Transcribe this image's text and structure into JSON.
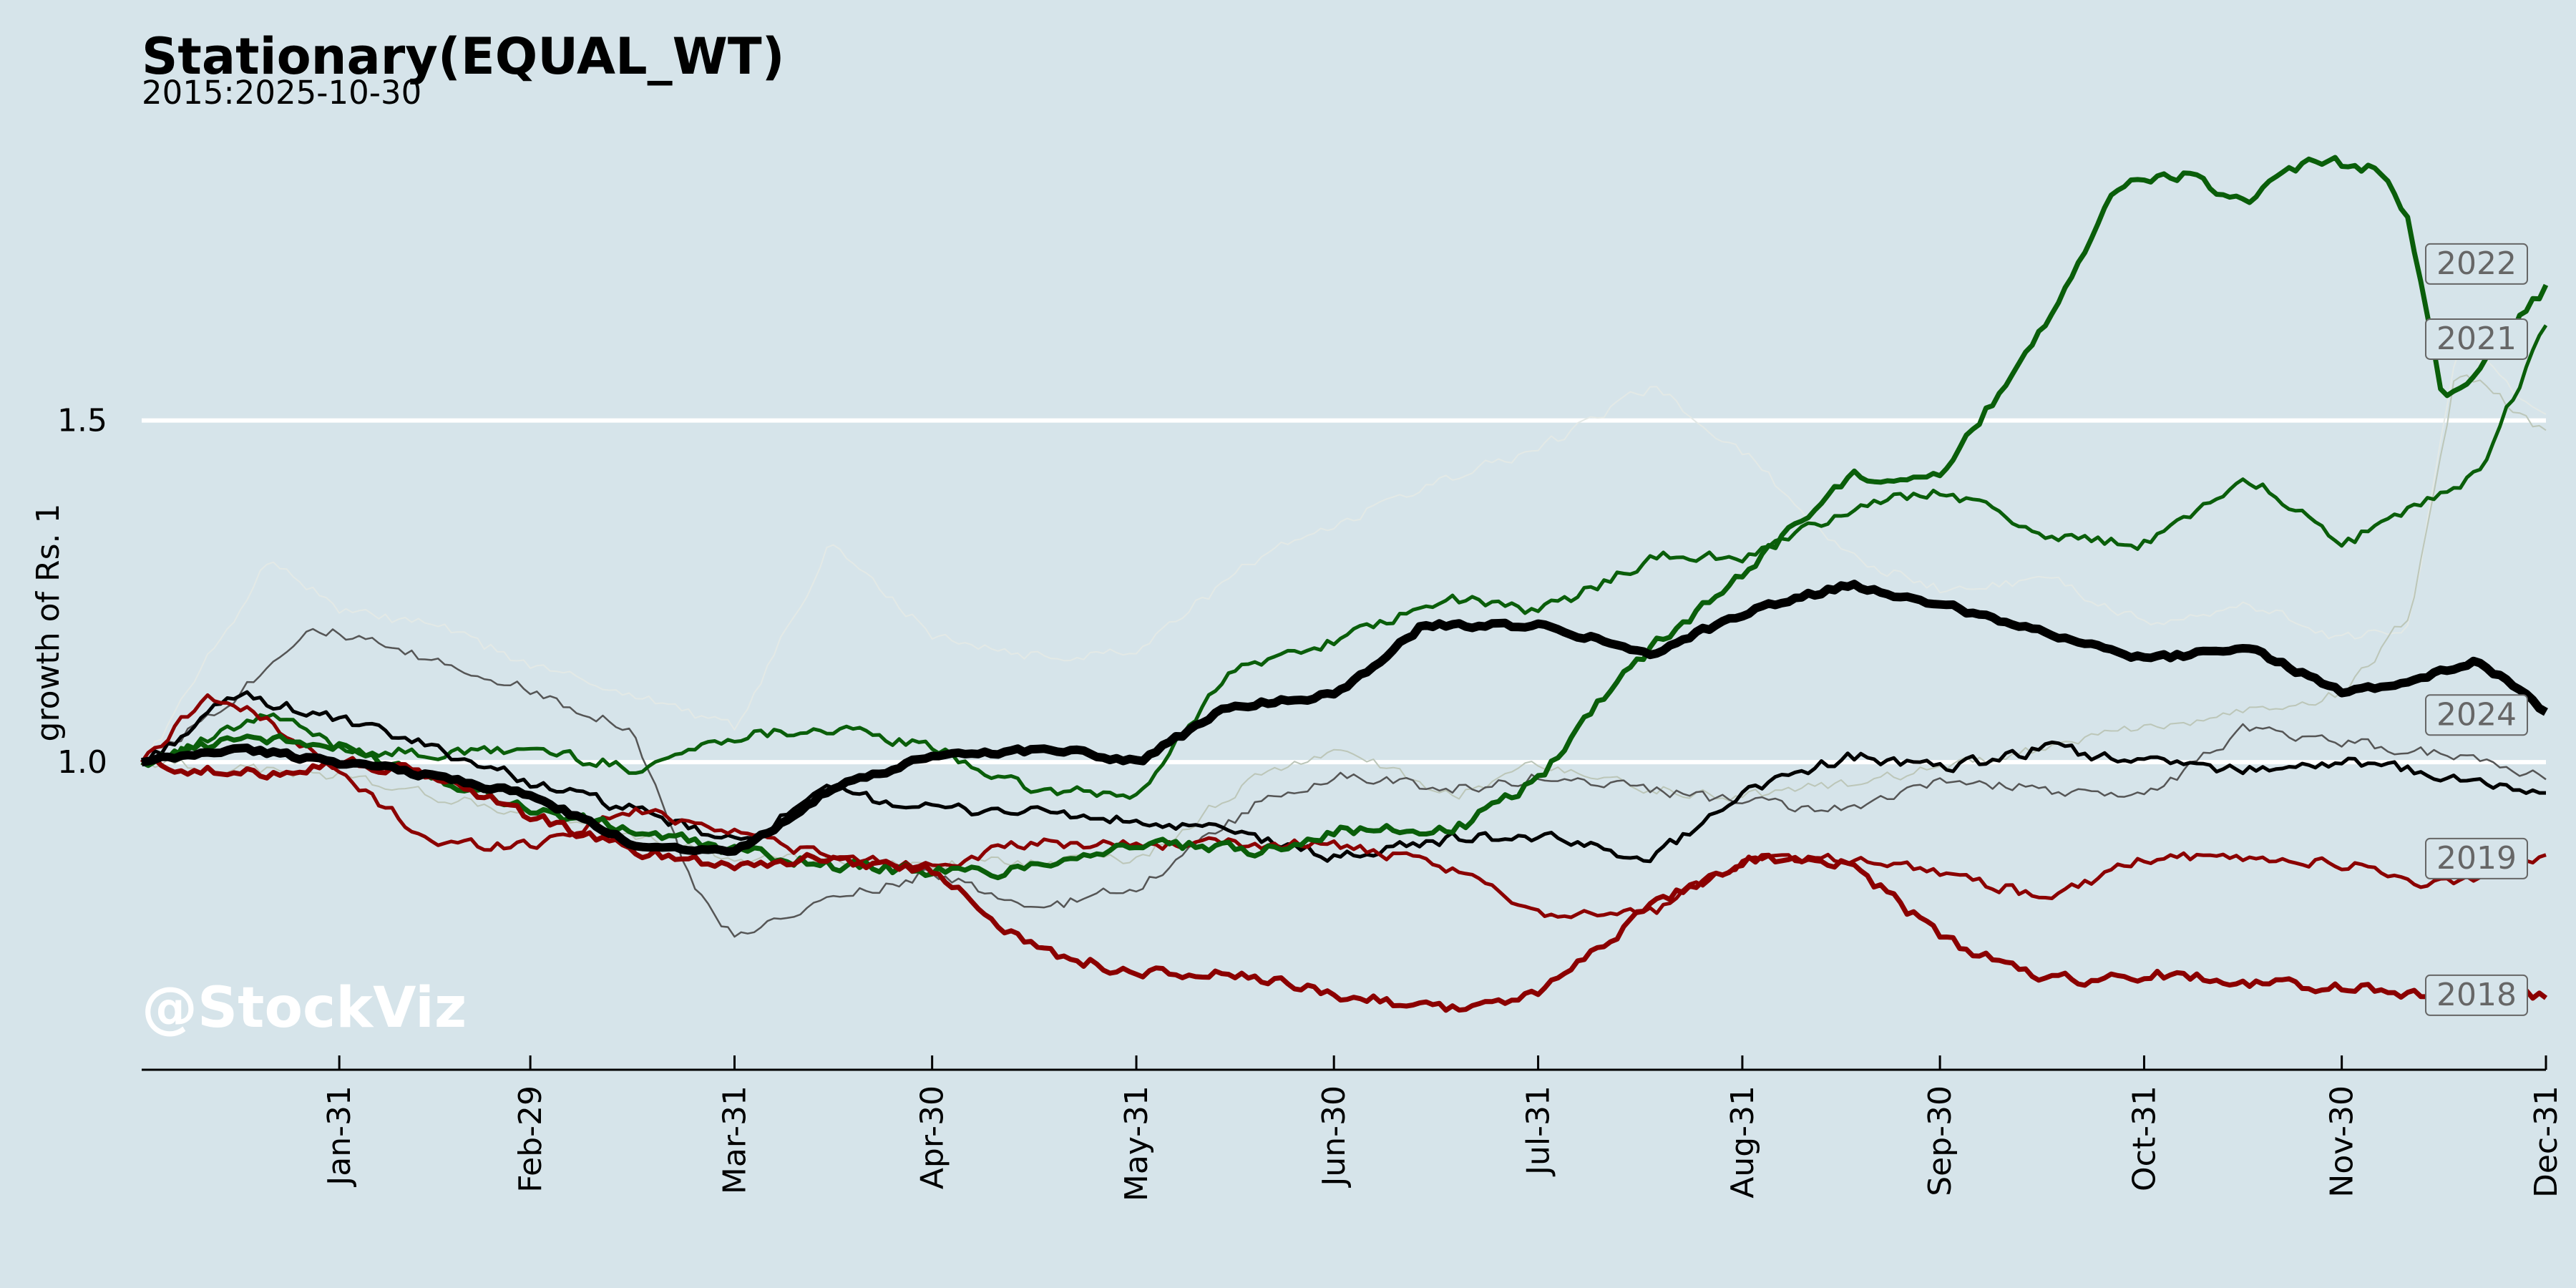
{
  "chart_data": {
    "type": "line",
    "title": "Stationary(EQUAL_WT)",
    "subtitle": "2015:2025-10-30",
    "ylabel": "growth of Rs. 1",
    "watermark": "@StockViz",
    "x_ticks": [
      "Jan-31",
      "Feb-29",
      "Mar-31",
      "Apr-30",
      "May-31",
      "Jun-30",
      "Jul-31",
      "Aug-31",
      "Sep-30",
      "Oct-31",
      "Nov-30",
      "Dec-31"
    ],
    "x_tick_days": [
      31,
      60,
      91,
      121,
      152,
      182,
      213,
      244,
      274,
      305,
      335,
      366
    ],
    "xlim": [
      1,
      366
    ],
    "y_ticks": [
      1.0,
      1.5
    ],
    "y_tick_labels": [
      "1.0",
      "1.5"
    ],
    "ylim": [
      0.55,
      2.0
    ],
    "grid": "horizontal",
    "series": [
      {
        "name": "2022",
        "color": "#0a5e0a",
        "style": "bold",
        "x": [
          1,
          15,
          31,
          45,
          60,
          75,
          91,
          105,
          121,
          131,
          140,
          152,
          170,
          182,
          200,
          213,
          225,
          244,
          260,
          274,
          290,
          300,
          310,
          320,
          330,
          340,
          345,
          350,
          357,
          366
        ],
        "y": [
          1.0,
          1.04,
          1.02,
          0.98,
          0.93,
          0.9,
          0.87,
          0.85,
          0.84,
          0.84,
          0.86,
          0.88,
          0.87,
          0.9,
          0.9,
          0.98,
          1.13,
          1.28,
          1.42,
          1.42,
          1.65,
          1.84,
          1.86,
          1.82,
          1.88,
          1.87,
          1.78,
          1.52,
          1.6,
          1.7
        ]
      },
      {
        "name": "2021",
        "color": "#0a5e0a",
        "style": "normal",
        "x": [
          1,
          10,
          20,
          31,
          45,
          60,
          75,
          91,
          105,
          121,
          135,
          152,
          165,
          182,
          200,
          213,
          230,
          244,
          260,
          274,
          290,
          305,
          320,
          335,
          345,
          355,
          366
        ],
        "y": [
          1.0,
          1.03,
          1.07,
          1.02,
          1.01,
          1.02,
          0.99,
          1.04,
          1.05,
          1.02,
          0.96,
          0.95,
          1.13,
          1.18,
          1.24,
          1.22,
          1.3,
          1.3,
          1.37,
          1.4,
          1.33,
          1.32,
          1.42,
          1.32,
          1.37,
          1.42,
          1.65
        ]
      },
      {
        "name": "2024",
        "color": "#000000",
        "style": "normal",
        "x": [
          1,
          15,
          31,
          45,
          60,
          75,
          91,
          105,
          121,
          135,
          152,
          165,
          182,
          200,
          213,
          230,
          244,
          260,
          274,
          290,
          305,
          320,
          335,
          350,
          366
        ],
        "y": [
          1.0,
          1.1,
          1.06,
          1.02,
          0.97,
          0.93,
          0.88,
          0.96,
          0.93,
          0.93,
          0.91,
          0.9,
          0.86,
          0.89,
          0.89,
          0.86,
          0.96,
          1.01,
          0.99,
          1.02,
          1.0,
          0.99,
          1.0,
          0.98,
          0.95
        ]
      },
      {
        "name": "2019",
        "color": "#8b0000",
        "style": "normal",
        "x": [
          1,
          10,
          20,
          31,
          45,
          60,
          75,
          91,
          105,
          121,
          135,
          152,
          165,
          182,
          200,
          213,
          230,
          244,
          260,
          274,
          290,
          305,
          320,
          335,
          350,
          366
        ],
        "y": [
          1.0,
          1.1,
          1.06,
          0.98,
          0.88,
          0.88,
          0.93,
          0.9,
          0.86,
          0.85,
          0.88,
          0.88,
          0.88,
          0.88,
          0.84,
          0.78,
          0.78,
          0.86,
          0.86,
          0.84,
          0.8,
          0.86,
          0.86,
          0.85,
          0.82,
          0.86
        ]
      },
      {
        "name": "2018",
        "color": "#8b0000",
        "style": "bold",
        "x": [
          1,
          15,
          31,
          45,
          60,
          75,
          91,
          105,
          121,
          128,
          135,
          152,
          165,
          182,
          200,
          213,
          220,
          230,
          244,
          260,
          274,
          290,
          305,
          320,
          335,
          350,
          366
        ],
        "y": [
          1.0,
          0.98,
          1.0,
          0.98,
          0.92,
          0.87,
          0.85,
          0.86,
          0.84,
          0.79,
          0.73,
          0.69,
          0.69,
          0.66,
          0.64,
          0.66,
          0.72,
          0.79,
          0.86,
          0.85,
          0.74,
          0.68,
          0.69,
          0.68,
          0.67,
          0.66,
          0.66
        ]
      },
      {
        "name": "",
        "color": "#000000",
        "style": "avg",
        "x": [
          1,
          15,
          31,
          45,
          60,
          75,
          91,
          105,
          121,
          140,
          152,
          165,
          182,
          195,
          213,
          230,
          244,
          260,
          274,
          290,
          305,
          320,
          335,
          345,
          355,
          366
        ],
        "y": [
          1.0,
          1.02,
          1.0,
          0.98,
          0.95,
          0.88,
          0.87,
          0.96,
          1.01,
          1.02,
          1.0,
          1.08,
          1.1,
          1.2,
          1.2,
          1.16,
          1.22,
          1.26,
          1.23,
          1.19,
          1.15,
          1.17,
          1.1,
          1.12,
          1.15,
          1.07
        ]
      },
      {
        "name": "",
        "color": "#555555",
        "style": "thin",
        "x": [
          1,
          15,
          26,
          40,
          55,
          75,
          85,
          91,
          105,
          121,
          135,
          152,
          170,
          182,
          200,
          213,
          230,
          244,
          260,
          274,
          290,
          305,
          320,
          335,
          350,
          366
        ],
        "y": [
          1.0,
          1.1,
          1.2,
          1.16,
          1.12,
          1.05,
          0.8,
          0.74,
          0.8,
          0.84,
          0.78,
          0.82,
          0.94,
          0.98,
          0.96,
          0.98,
          0.96,
          0.94,
          0.93,
          0.97,
          0.96,
          0.95,
          1.05,
          1.03,
          1.01,
          0.98
        ]
      },
      {
        "name": "",
        "color": "#e3e9e6",
        "style": "faint",
        "x": [
          1,
          20,
          31,
          45,
          60,
          75,
          91,
          105,
          121,
          140,
          152,
          170,
          182,
          200,
          213,
          230,
          244,
          260,
          274,
          290,
          305,
          320,
          335,
          345,
          352,
          366
        ],
        "y": [
          1.0,
          1.3,
          1.22,
          1.2,
          1.14,
          1.1,
          1.05,
          1.32,
          1.18,
          1.15,
          1.17,
          1.3,
          1.35,
          1.42,
          1.46,
          1.55,
          1.45,
          1.3,
          1.25,
          1.27,
          1.2,
          1.23,
          1.18,
          1.2,
          1.62,
          1.5
        ]
      },
      {
        "name": "",
        "color": "#bcc6b8",
        "style": "faint",
        "x": [
          1,
          31,
          60,
          91,
          121,
          152,
          170,
          182,
          200,
          213,
          230,
          244,
          274,
          305,
          335,
          345,
          352,
          366
        ],
        "y": [
          1.0,
          0.98,
          0.92,
          0.86,
          0.85,
          0.86,
          0.98,
          1.02,
          0.95,
          1.0,
          0.96,
          0.95,
          0.99,
          1.05,
          1.1,
          1.22,
          1.58,
          1.48
        ]
      }
    ]
  }
}
